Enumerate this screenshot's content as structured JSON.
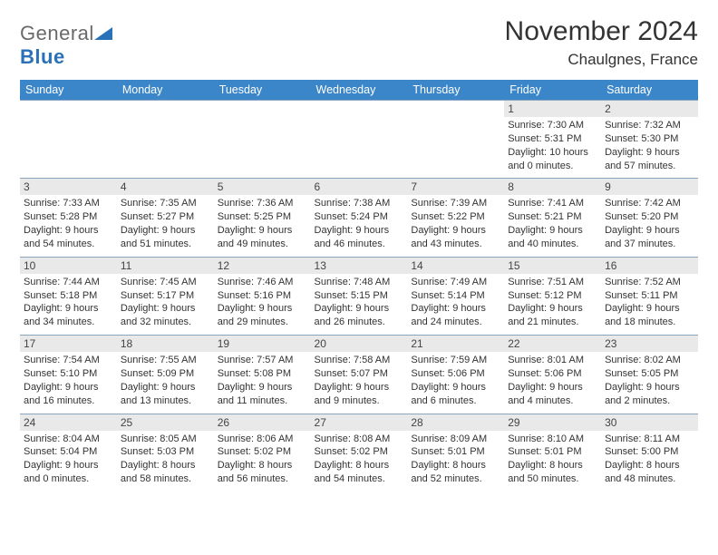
{
  "logo": {
    "text_dark": "General",
    "text_blue": "Blue",
    "icon_color": "#2a71b8"
  },
  "title": "November 2024",
  "location": "Chaulgnes, France",
  "colors": {
    "header_bg": "#3b86c8",
    "header_fg": "#ffffff",
    "daynum_bg": "#e9e9e9",
    "rule": "#8aa4bd",
    "blank_bg": "#efefef",
    "text": "#333333",
    "logo_gray": "#6a6a6a"
  },
  "day_headers": [
    "Sunday",
    "Monday",
    "Tuesday",
    "Wednesday",
    "Thursday",
    "Friday",
    "Saturday"
  ],
  "weeks": [
    [
      {
        "n": "",
        "sr": "",
        "ss": "",
        "dl": ""
      },
      {
        "n": "",
        "sr": "",
        "ss": "",
        "dl": ""
      },
      {
        "n": "",
        "sr": "",
        "ss": "",
        "dl": ""
      },
      {
        "n": "",
        "sr": "",
        "ss": "",
        "dl": ""
      },
      {
        "n": "",
        "sr": "",
        "ss": "",
        "dl": ""
      },
      {
        "n": "1",
        "sr": "Sunrise: 7:30 AM",
        "ss": "Sunset: 5:31 PM",
        "dl": "Daylight: 10 hours and 0 minutes."
      },
      {
        "n": "2",
        "sr": "Sunrise: 7:32 AM",
        "ss": "Sunset: 5:30 PM",
        "dl": "Daylight: 9 hours and 57 minutes."
      }
    ],
    [
      {
        "n": "3",
        "sr": "Sunrise: 7:33 AM",
        "ss": "Sunset: 5:28 PM",
        "dl": "Daylight: 9 hours and 54 minutes."
      },
      {
        "n": "4",
        "sr": "Sunrise: 7:35 AM",
        "ss": "Sunset: 5:27 PM",
        "dl": "Daylight: 9 hours and 51 minutes."
      },
      {
        "n": "5",
        "sr": "Sunrise: 7:36 AM",
        "ss": "Sunset: 5:25 PM",
        "dl": "Daylight: 9 hours and 49 minutes."
      },
      {
        "n": "6",
        "sr": "Sunrise: 7:38 AM",
        "ss": "Sunset: 5:24 PM",
        "dl": "Daylight: 9 hours and 46 minutes."
      },
      {
        "n": "7",
        "sr": "Sunrise: 7:39 AM",
        "ss": "Sunset: 5:22 PM",
        "dl": "Daylight: 9 hours and 43 minutes."
      },
      {
        "n": "8",
        "sr": "Sunrise: 7:41 AM",
        "ss": "Sunset: 5:21 PM",
        "dl": "Daylight: 9 hours and 40 minutes."
      },
      {
        "n": "9",
        "sr": "Sunrise: 7:42 AM",
        "ss": "Sunset: 5:20 PM",
        "dl": "Daylight: 9 hours and 37 minutes."
      }
    ],
    [
      {
        "n": "10",
        "sr": "Sunrise: 7:44 AM",
        "ss": "Sunset: 5:18 PM",
        "dl": "Daylight: 9 hours and 34 minutes."
      },
      {
        "n": "11",
        "sr": "Sunrise: 7:45 AM",
        "ss": "Sunset: 5:17 PM",
        "dl": "Daylight: 9 hours and 32 minutes."
      },
      {
        "n": "12",
        "sr": "Sunrise: 7:46 AM",
        "ss": "Sunset: 5:16 PM",
        "dl": "Daylight: 9 hours and 29 minutes."
      },
      {
        "n": "13",
        "sr": "Sunrise: 7:48 AM",
        "ss": "Sunset: 5:15 PM",
        "dl": "Daylight: 9 hours and 26 minutes."
      },
      {
        "n": "14",
        "sr": "Sunrise: 7:49 AM",
        "ss": "Sunset: 5:14 PM",
        "dl": "Daylight: 9 hours and 24 minutes."
      },
      {
        "n": "15",
        "sr": "Sunrise: 7:51 AM",
        "ss": "Sunset: 5:12 PM",
        "dl": "Daylight: 9 hours and 21 minutes."
      },
      {
        "n": "16",
        "sr": "Sunrise: 7:52 AM",
        "ss": "Sunset: 5:11 PM",
        "dl": "Daylight: 9 hours and 18 minutes."
      }
    ],
    [
      {
        "n": "17",
        "sr": "Sunrise: 7:54 AM",
        "ss": "Sunset: 5:10 PM",
        "dl": "Daylight: 9 hours and 16 minutes."
      },
      {
        "n": "18",
        "sr": "Sunrise: 7:55 AM",
        "ss": "Sunset: 5:09 PM",
        "dl": "Daylight: 9 hours and 13 minutes."
      },
      {
        "n": "19",
        "sr": "Sunrise: 7:57 AM",
        "ss": "Sunset: 5:08 PM",
        "dl": "Daylight: 9 hours and 11 minutes."
      },
      {
        "n": "20",
        "sr": "Sunrise: 7:58 AM",
        "ss": "Sunset: 5:07 PM",
        "dl": "Daylight: 9 hours and 9 minutes."
      },
      {
        "n": "21",
        "sr": "Sunrise: 7:59 AM",
        "ss": "Sunset: 5:06 PM",
        "dl": "Daylight: 9 hours and 6 minutes."
      },
      {
        "n": "22",
        "sr": "Sunrise: 8:01 AM",
        "ss": "Sunset: 5:06 PM",
        "dl": "Daylight: 9 hours and 4 minutes."
      },
      {
        "n": "23",
        "sr": "Sunrise: 8:02 AM",
        "ss": "Sunset: 5:05 PM",
        "dl": "Daylight: 9 hours and 2 minutes."
      }
    ],
    [
      {
        "n": "24",
        "sr": "Sunrise: 8:04 AM",
        "ss": "Sunset: 5:04 PM",
        "dl": "Daylight: 9 hours and 0 minutes."
      },
      {
        "n": "25",
        "sr": "Sunrise: 8:05 AM",
        "ss": "Sunset: 5:03 PM",
        "dl": "Daylight: 8 hours and 58 minutes."
      },
      {
        "n": "26",
        "sr": "Sunrise: 8:06 AM",
        "ss": "Sunset: 5:02 PM",
        "dl": "Daylight: 8 hours and 56 minutes."
      },
      {
        "n": "27",
        "sr": "Sunrise: 8:08 AM",
        "ss": "Sunset: 5:02 PM",
        "dl": "Daylight: 8 hours and 54 minutes."
      },
      {
        "n": "28",
        "sr": "Sunrise: 8:09 AM",
        "ss": "Sunset: 5:01 PM",
        "dl": "Daylight: 8 hours and 52 minutes."
      },
      {
        "n": "29",
        "sr": "Sunrise: 8:10 AM",
        "ss": "Sunset: 5:01 PM",
        "dl": "Daylight: 8 hours and 50 minutes."
      },
      {
        "n": "30",
        "sr": "Sunrise: 8:11 AM",
        "ss": "Sunset: 5:00 PM",
        "dl": "Daylight: 8 hours and 48 minutes."
      }
    ]
  ]
}
